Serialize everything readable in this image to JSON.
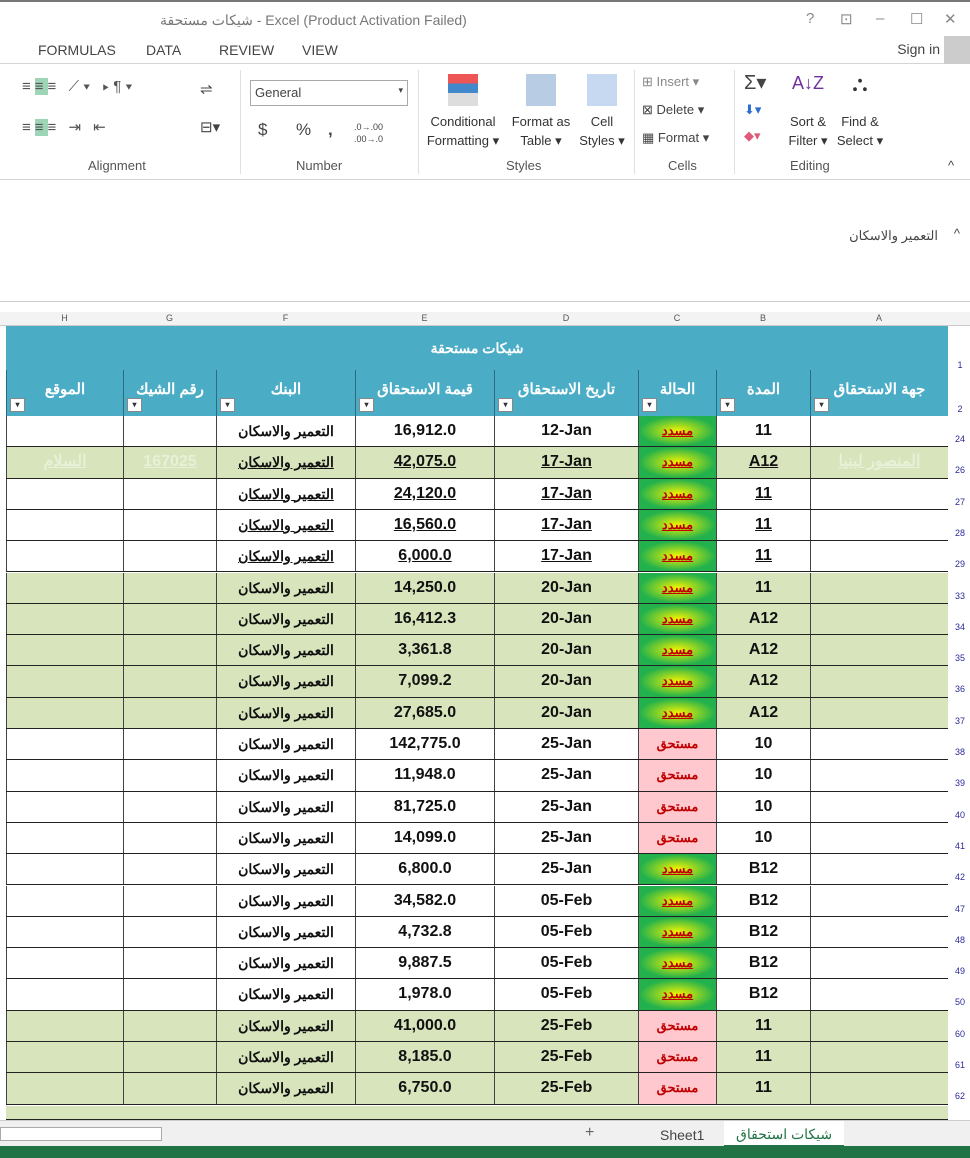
{
  "window": {
    "title": "شيكات مستحقة - Excel (Product Activation Failed)",
    "help": "?",
    "restore": "⊡",
    "minimize": "–",
    "maximize": "☐",
    "close": "✕"
  },
  "menu": {
    "items": [
      "FORMULAS",
      "DATA",
      "REVIEW",
      "VIEW"
    ],
    "sign_in": "Sign in"
  },
  "ribbon": {
    "number_format": "General",
    "currency": "$",
    "percent": "%",
    "comma": ",",
    "inc_dec": ".0→.00",
    "dec_dec": ".00→.0",
    "styles": {
      "conditional": [
        "Conditional",
        "Formatting ▾"
      ],
      "format_table": [
        "Format as",
        "Table ▾"
      ],
      "cell_styles": [
        "Cell",
        "Styles ▾"
      ]
    },
    "cells": {
      "insert": "Insert ▾",
      "delete": "Delete ▾",
      "format": "Format ▾"
    },
    "editing": {
      "sort": [
        "Sort &",
        "Filter ▾"
      ],
      "find": [
        "Find &",
        "Select ▾"
      ]
    },
    "groups": {
      "alignment": "Alignment",
      "number": "Number",
      "styles": "Styles",
      "cells": "Cells",
      "editing": "Editing"
    }
  },
  "formula_bar": {
    "value": "التعمير والاسكان"
  },
  "columns": [
    "A",
    "B",
    "C",
    "D",
    "E",
    "F",
    "G",
    "H"
  ],
  "sheet": {
    "title": "شيكات مستحقة",
    "headers": [
      "جهة الاستحقاق",
      "المدة",
      "الحالة",
      "تاريخ الاستحقاق",
      "قيمة الاستحقاق",
      "البنك",
      "رقم الشيك",
      "الموقع"
    ],
    "rows": [
      {
        "n": "24",
        "bg": "white",
        "u": false,
        "a": "",
        "b": "11",
        "c": "مسدد",
        "d": "12-Jan",
        "e": "16,912.0",
        "f": "التعمير والاسكان",
        "g": "",
        "h": ""
      },
      {
        "n": "26",
        "bg": "green",
        "u": true,
        "a": "المنصور لبنيا",
        "b": "A12",
        "c": "مسدد",
        "d": "17-Jan",
        "e": "42,075.0",
        "f": "التعمير والاسكان",
        "g": "167025",
        "h": "السلام"
      },
      {
        "n": "27",
        "bg": "white",
        "u": true,
        "a": "",
        "b": "11",
        "c": "مسدد",
        "d": "17-Jan",
        "e": "24,120.0",
        "f": "التعمير والاسكان",
        "g": "",
        "h": ""
      },
      {
        "n": "28",
        "bg": "white",
        "u": true,
        "a": "",
        "b": "11",
        "c": "مسدد",
        "d": "17-Jan",
        "e": "16,560.0",
        "f": "التعمير والاسكان",
        "g": "",
        "h": ""
      },
      {
        "n": "29",
        "bg": "white",
        "u": true,
        "a": "",
        "b": "11",
        "c": "مسدد",
        "d": "17-Jan",
        "e": "6,000.0",
        "f": "التعمير والاسكان",
        "g": "",
        "h": ""
      },
      {
        "n": "33",
        "bg": "green",
        "u": false,
        "a": "",
        "b": "11",
        "c": "مسدد",
        "d": "20-Jan",
        "e": "14,250.0",
        "f": "التعمير والاسكان",
        "g": "",
        "h": ""
      },
      {
        "n": "34",
        "bg": "green",
        "u": false,
        "a": "",
        "b": "A12",
        "c": "مسدد",
        "d": "20-Jan",
        "e": "16,412.3",
        "f": "التعمير والاسكان",
        "g": "",
        "h": ""
      },
      {
        "n": "35",
        "bg": "green",
        "u": false,
        "a": "",
        "b": "A12",
        "c": "مسدد",
        "d": "20-Jan",
        "e": "3,361.8",
        "f": "التعمير والاسكان",
        "g": "",
        "h": ""
      },
      {
        "n": "36",
        "bg": "green",
        "u": false,
        "a": "",
        "b": "A12",
        "c": "مسدد",
        "d": "20-Jan",
        "e": "7,099.2",
        "f": "التعمير والاسكان",
        "g": "",
        "h": ""
      },
      {
        "n": "37",
        "bg": "green",
        "u": false,
        "a": "",
        "b": "A12",
        "c": "مسدد",
        "d": "20-Jan",
        "e": "27,685.0",
        "f": "التعمير والاسكان",
        "g": "",
        "h": ""
      },
      {
        "n": "38",
        "bg": "white",
        "u": false,
        "a": "",
        "b": "10",
        "c": "مستحق",
        "d": "25-Jan",
        "e": "142,775.0",
        "f": "التعمير والاسكان",
        "g": "",
        "h": ""
      },
      {
        "n": "39",
        "bg": "white",
        "u": false,
        "a": "",
        "b": "10",
        "c": "مستحق",
        "d": "25-Jan",
        "e": "11,948.0",
        "f": "التعمير والاسكان",
        "g": "",
        "h": ""
      },
      {
        "n": "40",
        "bg": "white",
        "u": false,
        "a": "",
        "b": "10",
        "c": "مستحق",
        "d": "25-Jan",
        "e": "81,725.0",
        "f": "التعمير والاسكان",
        "g": "",
        "h": ""
      },
      {
        "n": "41",
        "bg": "white",
        "u": false,
        "a": "",
        "b": "10",
        "c": "مستحق",
        "d": "25-Jan",
        "e": "14,099.0",
        "f": "التعمير والاسكان",
        "g": "",
        "h": ""
      },
      {
        "n": "42",
        "bg": "white",
        "u": false,
        "a": "",
        "b": "B12",
        "c": "مسدد",
        "d": "25-Jan",
        "e": "6,800.0",
        "f": "التعمير والاسكان",
        "g": "",
        "h": ""
      },
      {
        "n": "47",
        "bg": "white",
        "u": false,
        "a": "",
        "b": "B12",
        "c": "مسدد",
        "d": "05-Feb",
        "e": "34,582.0",
        "f": "التعمير والاسكان",
        "g": "",
        "h": ""
      },
      {
        "n": "48",
        "bg": "white",
        "u": false,
        "a": "",
        "b": "B12",
        "c": "مسدد",
        "d": "05-Feb",
        "e": "4,732.8",
        "f": "التعمير والاسكان",
        "g": "",
        "h": ""
      },
      {
        "n": "49",
        "bg": "white",
        "u": false,
        "a": "",
        "b": "B12",
        "c": "مسدد",
        "d": "05-Feb",
        "e": "9,887.5",
        "f": "التعمير والاسكان",
        "g": "",
        "h": ""
      },
      {
        "n": "50",
        "bg": "white",
        "u": false,
        "a": "",
        "b": "B12",
        "c": "مسدد",
        "d": "05-Feb",
        "e": "1,978.0",
        "f": "التعمير والاسكان",
        "g": "",
        "h": ""
      },
      {
        "n": "60",
        "bg": "green",
        "u": false,
        "a": "",
        "b": "11",
        "c": "مستحق",
        "d": "25-Feb",
        "e": "41,000.0",
        "f": "التعمير والاسكان",
        "g": "",
        "h": ""
      },
      {
        "n": "61",
        "bg": "green",
        "u": false,
        "a": "",
        "b": "11",
        "c": "مستحق",
        "d": "25-Feb",
        "e": "8,185.0",
        "f": "التعمير والاسكان",
        "g": "",
        "h": ""
      },
      {
        "n": "62",
        "bg": "green",
        "u": false,
        "a": "",
        "b": "11",
        "c": "مستحق",
        "d": "25-Feb",
        "e": "6,750.0",
        "f": "التعمير والاسكان",
        "g": "",
        "h": ""
      }
    ]
  },
  "tabs": {
    "add": "+",
    "items": [
      "Sheet1",
      "شيكات استحقاق"
    ],
    "active": 1
  },
  "colors": {
    "header": "#4bacc6",
    "green_row": "#d7e4bc",
    "paid": "#22b14c",
    "due": "#ffc7ce",
    "status_bar": "#217346"
  }
}
